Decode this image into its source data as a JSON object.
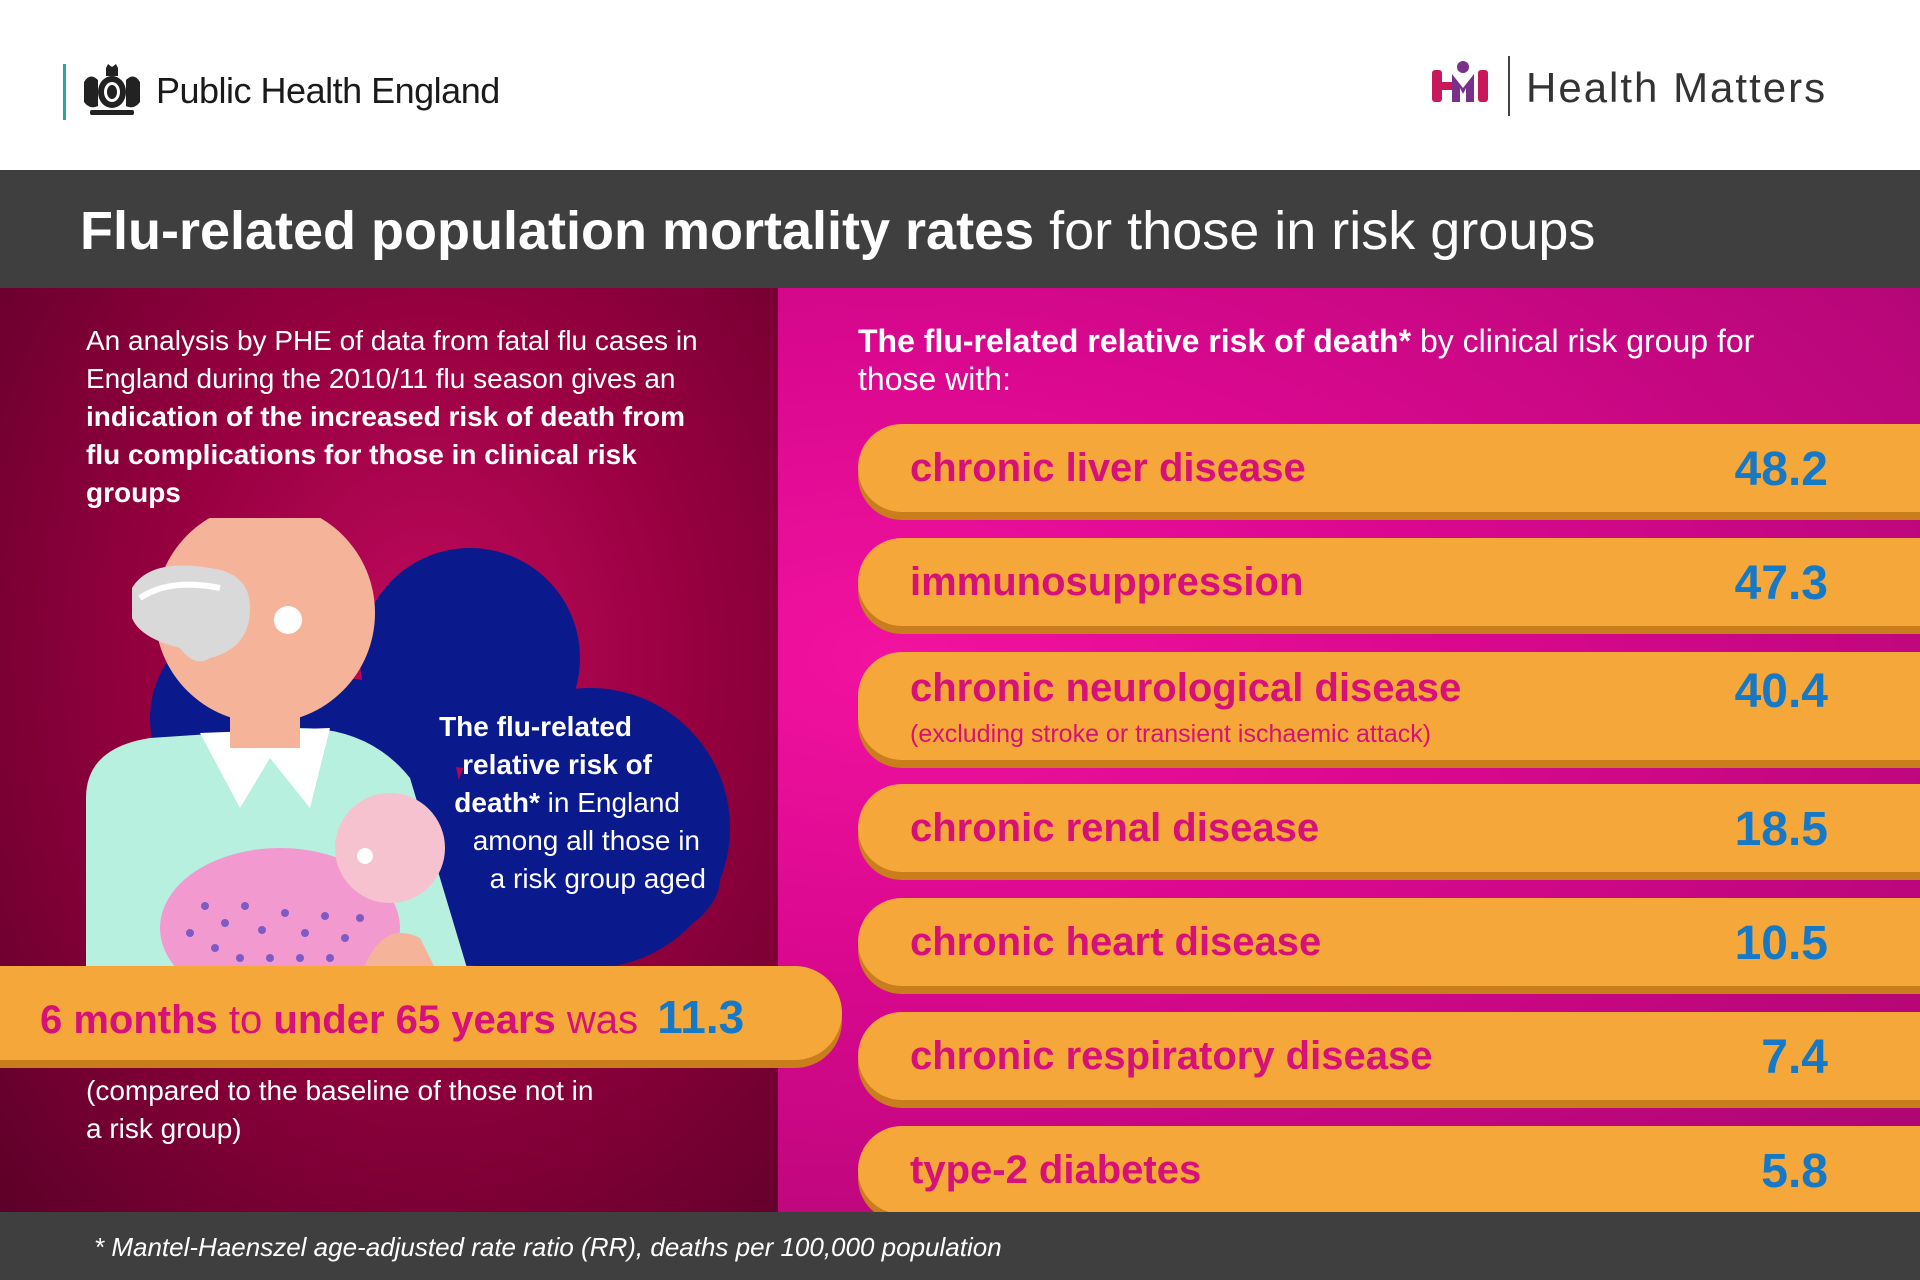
{
  "header": {
    "org_name": "Public Health England",
    "campaign_name": "Health Matters"
  },
  "title": {
    "bold": "Flu-related population mortality rates",
    "light": "for those in risk groups"
  },
  "left": {
    "intro_plain": "An analysis by PHE of data from fatal flu cases in England during the 2010/11 flu season gives an",
    "intro_bold": "indication of the increased risk of death from flu complications for those in clinical risk groups",
    "cloud": {
      "line1": "The flu-related",
      "line2": "relative risk of",
      "line3_bold": "death*",
      "line3_plain": "in England",
      "line4": "among all those in",
      "line5": "a risk group aged"
    },
    "overall": {
      "age_from": "6 months",
      "to_word": "to",
      "age_to": "under 65 years",
      "was_word": "was",
      "value": "11.3"
    },
    "comparison": "(compared to the baseline of those not in a risk group)"
  },
  "right": {
    "heading_bold": "The flu-related relative risk of death*",
    "heading_plain": "by clinical risk group for those with:",
    "rows": [
      {
        "label": "chronic liver disease",
        "sub": "",
        "value": "48.2"
      },
      {
        "label": "immunosuppression",
        "sub": "",
        "value": "47.3"
      },
      {
        "label": "chronic neurological disease",
        "sub": "(excluding stroke or transient ischaemic attack)",
        "value": "40.4"
      },
      {
        "label": "chronic renal disease",
        "sub": "",
        "value": "18.5"
      },
      {
        "label": "chronic heart disease",
        "sub": "",
        "value": "10.5"
      },
      {
        "label": "chronic respiratory disease",
        "sub": "",
        "value": "7.4"
      },
      {
        "label": "type-2 diabetes",
        "sub": "",
        "value": "5.8"
      }
    ]
  },
  "footer": {
    "footnote": "* Mantel-Haenszel age-adjusted rate ratio (RR), deaths per 100,000 population"
  },
  "colors": {
    "title_band": "#3f3f3f",
    "left_panel": "#96003f",
    "right_panel": "#d9088e",
    "bar": "#f5a73a",
    "label_text": "#d6117a",
    "value_text": "#1679c7",
    "phe_accent": "#2aa891"
  },
  "icons": {
    "phe_logo": "royal-crest-icon",
    "hm_logo": "health-matters-logo-icon"
  }
}
